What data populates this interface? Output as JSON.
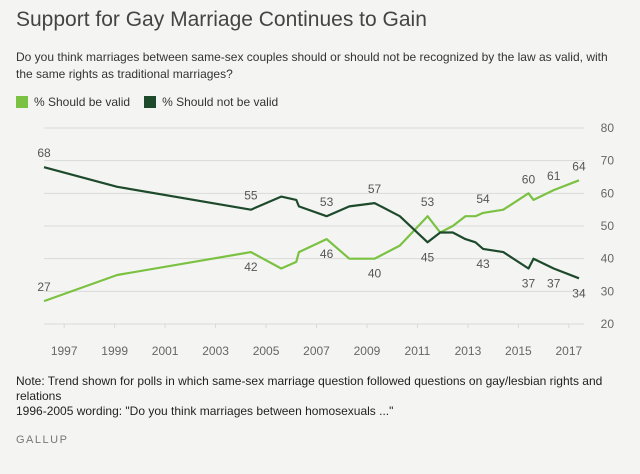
{
  "title": "Support for Gay Marriage Continues to Gain",
  "subtitle": "Do you think marriages between same-sex couples should or should not be recognized by the law as valid, with the same rights as traditional marriages?",
  "note_lines": [
    "Note: Trend shown for polls in which same-sex marriage question followed questions on gay/lesbian rights and relations",
    "1996-2005 wording: \"Do you think marriages between homosexuals ...\""
  ],
  "source": "GALLUP",
  "colors": {
    "valid": "#7bc142",
    "not_valid": "#1e4a2c",
    "grid": "#d9dad8",
    "axis_text": "#666666"
  },
  "chart_data": {
    "type": "line",
    "title": "Support for Gay Marriage Continues to Gain",
    "xlabel": "",
    "ylabel": "",
    "xlim": [
      1996.2,
      2017.6
    ],
    "ylim": [
      20,
      80
    ],
    "x_ticks": [
      1997,
      1999,
      2001,
      2003,
      2005,
      2007,
      2009,
      2011,
      2013,
      2015,
      2017
    ],
    "y_ticks": [
      20,
      30,
      40,
      50,
      60,
      70,
      80
    ],
    "grid": true,
    "legend_position": "top-left",
    "series": [
      {
        "name": "% Should be valid",
        "color_key": "valid",
        "points": [
          [
            1996.2,
            27
          ],
          [
            1999.1,
            35
          ],
          [
            2004.4,
            42
          ],
          [
            2005.6,
            37
          ],
          [
            2006.2,
            39
          ],
          [
            2006.3,
            42
          ],
          [
            2007.4,
            46
          ],
          [
            2008.3,
            40
          ],
          [
            2009.3,
            40
          ],
          [
            2010.3,
            44
          ],
          [
            2011.4,
            53
          ],
          [
            2011.9,
            48
          ],
          [
            2012.4,
            50
          ],
          [
            2012.9,
            53
          ],
          [
            2013.3,
            53
          ],
          [
            2013.6,
            54
          ],
          [
            2014.4,
            55
          ],
          [
            2015.4,
            60
          ],
          [
            2015.6,
            58
          ],
          [
            2016.4,
            61
          ],
          [
            2017.4,
            64
          ]
        ],
        "labels": [
          {
            "x": 1996.2,
            "y": 27,
            "text": "27",
            "pos": "above"
          },
          {
            "x": 2004.4,
            "y": 42,
            "text": "42",
            "pos": "below"
          },
          {
            "x": 2007.4,
            "y": 46,
            "text": "46",
            "pos": "below"
          },
          {
            "x": 2009.3,
            "y": 40,
            "text": "40",
            "pos": "below"
          },
          {
            "x": 2011.4,
            "y": 53,
            "text": "53",
            "pos": "above"
          },
          {
            "x": 2013.6,
            "y": 54,
            "text": "54",
            "pos": "above"
          },
          {
            "x": 2015.4,
            "y": 60,
            "text": "60",
            "pos": "above"
          },
          {
            "x": 2016.4,
            "y": 61,
            "text": "61",
            "pos": "above"
          },
          {
            "x": 2017.4,
            "y": 64,
            "text": "64",
            "pos": "above"
          }
        ]
      },
      {
        "name": "% Should not be valid",
        "color_key": "not_valid",
        "points": [
          [
            1996.2,
            68
          ],
          [
            1999.1,
            62
          ],
          [
            2004.4,
            55
          ],
          [
            2005.6,
            59
          ],
          [
            2006.2,
            58
          ],
          [
            2006.3,
            56
          ],
          [
            2007.4,
            53
          ],
          [
            2008.3,
            56
          ],
          [
            2009.3,
            57
          ],
          [
            2010.3,
            53
          ],
          [
            2011.4,
            45
          ],
          [
            2011.9,
            48
          ],
          [
            2012.4,
            48
          ],
          [
            2012.9,
            46
          ],
          [
            2013.3,
            45
          ],
          [
            2013.6,
            43
          ],
          [
            2014.4,
            42
          ],
          [
            2015.4,
            37
          ],
          [
            2015.6,
            40
          ],
          [
            2016.4,
            37
          ],
          [
            2017.4,
            34
          ]
        ],
        "labels": [
          {
            "x": 1996.2,
            "y": 68,
            "text": "68",
            "pos": "above"
          },
          {
            "x": 2004.4,
            "y": 55,
            "text": "55",
            "pos": "above"
          },
          {
            "x": 2007.4,
            "y": 53,
            "text": "53",
            "pos": "above"
          },
          {
            "x": 2009.3,
            "y": 57,
            "text": "57",
            "pos": "above"
          },
          {
            "x": 2011.4,
            "y": 45,
            "text": "45",
            "pos": "below"
          },
          {
            "x": 2013.6,
            "y": 43,
            "text": "43",
            "pos": "below"
          },
          {
            "x": 2015.4,
            "y": 37,
            "text": "37",
            "pos": "below"
          },
          {
            "x": 2016.4,
            "y": 37,
            "text": "37",
            "pos": "below"
          },
          {
            "x": 2017.4,
            "y": 34,
            "text": "34",
            "pos": "below"
          }
        ]
      }
    ]
  }
}
